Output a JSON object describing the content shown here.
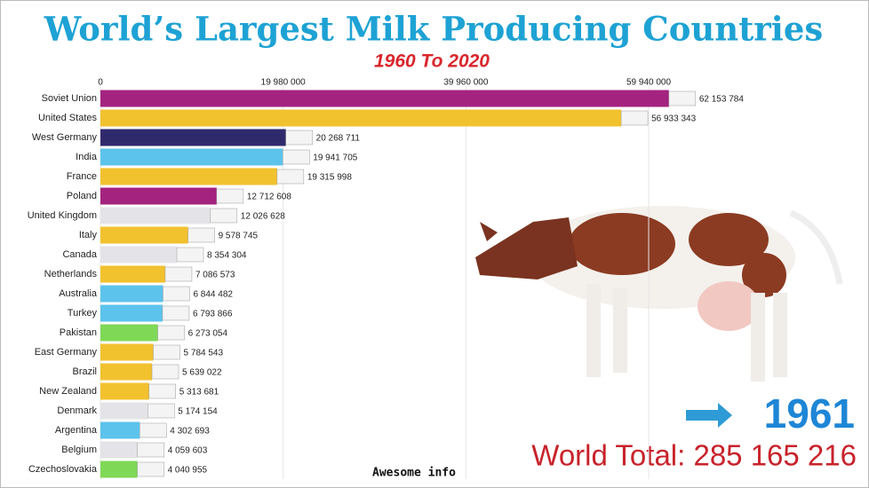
{
  "chart_data": {
    "type": "bar",
    "orientation": "horizontal",
    "title": "World’s Largest Milk Producing Countries",
    "subtitle": "1960 To 2020",
    "categories": [
      "Soviet Union",
      "United States",
      "West Germany",
      "India",
      "France",
      "Poland",
      "United Kingdom",
      "Italy",
      "Canada",
      "Netherlands",
      "Australia",
      "Turkey",
      "Pakistan",
      "East Germany",
      "Brazil",
      "New Zealand",
      "Denmark",
      "Argentina",
      "Belgium",
      "Czechoslovakia"
    ],
    "values": [
      62153784,
      56933343,
      20268711,
      19941705,
      19315998,
      12712608,
      12026628,
      9578745,
      8354304,
      7086573,
      6844482,
      6793866,
      6273054,
      5784543,
      5639022,
      5313681,
      5174154,
      4302693,
      4059603,
      4040955
    ],
    "value_labels": [
      "62 153 784",
      "56 933 343",
      "20 268 711",
      "19 941 705",
      "19 315 998",
      "12 712 608",
      "12 026 628",
      "9 578 745",
      "8 354 304",
      "7 086 573",
      "6 844 482",
      "6 793 866",
      "6 273 054",
      "5 784 543",
      "5 639 022",
      "5 313 681",
      "5 174 154",
      "4 302 693",
      "4 059 603",
      "4 040 955"
    ],
    "colors": [
      "#a3237f",
      "#f2c12e",
      "#2f2a6c",
      "#5cc3ec",
      "#f2c12e",
      "#a3237f",
      "#e4e4e8",
      "#f2c12e",
      "#e4e4e8",
      "#f2c12e",
      "#5cc3ec",
      "#5cc3ec",
      "#7fd856",
      "#f2c12e",
      "#f2c12e",
      "#f2c12e",
      "#e4e4e8",
      "#5cc3ec",
      "#e4e4e8",
      "#7fd856"
    ],
    "xlim": [
      0,
      70000000
    ],
    "xticks": [
      0,
      {
        "value": 19980000,
        "label": "19 980 000"
      },
      {
        "value": 39960000,
        "label": "39 960 000"
      },
      {
        "value": 59940000,
        "label": "59 940 000"
      }
    ],
    "grid": true,
    "year": "1961",
    "total_label": "World Total: 285 165 216",
    "watermark": "Awesome info"
  }
}
